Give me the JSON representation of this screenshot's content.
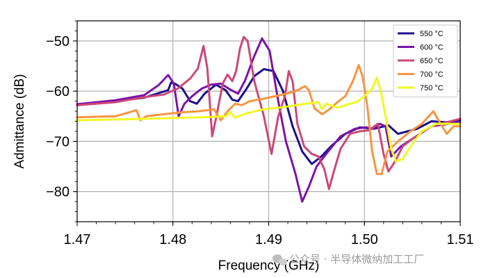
{
  "chart_data": {
    "type": "line",
    "title": "",
    "xlabel": "Frequency (GHz)",
    "ylabel": "Admittance (dB)",
    "xlim": [
      1.47,
      1.51
    ],
    "ylim": [
      -86,
      -46
    ],
    "x_ticks": [
      1.47,
      1.48,
      1.49,
      1.5,
      1.51
    ],
    "x_tick_labels": [
      "1.47",
      "1.48",
      "1.49",
      "1.50",
      "1.51"
    ],
    "y_ticks": [
      -80,
      -70,
      -60,
      -50
    ],
    "y_tick_labels": [
      "−80",
      "−70",
      "−60",
      "−50"
    ],
    "grid": true,
    "legend_position": "top-right",
    "series": [
      {
        "name": "550 °C",
        "color": "#1a0e8c",
        "points": [
          [
            1.47,
            -62.8
          ],
          [
            1.474,
            -62.0
          ],
          [
            1.477,
            -61.3
          ],
          [
            1.4795,
            -59.8
          ],
          [
            1.4798,
            -58.3
          ],
          [
            1.4802,
            -58.5
          ],
          [
            1.481,
            -59.5
          ],
          [
            1.4818,
            -62.0
          ],
          [
            1.4825,
            -62.5
          ],
          [
            1.4833,
            -60.5
          ],
          [
            1.4845,
            -58.7
          ],
          [
            1.4855,
            -59.8
          ],
          [
            1.4862,
            -61.7
          ],
          [
            1.4868,
            -62.0
          ],
          [
            1.4877,
            -59.5
          ],
          [
            1.4885,
            -57.0
          ],
          [
            1.4895,
            -55.6
          ],
          [
            1.4905,
            -56.0
          ],
          [
            1.4915,
            -60.0
          ],
          [
            1.4925,
            -67.0
          ],
          [
            1.4935,
            -72.0
          ],
          [
            1.4945,
            -74.5
          ],
          [
            1.4955,
            -73.0
          ],
          [
            1.4965,
            -71.0
          ],
          [
            1.498,
            -68.5
          ],
          [
            1.4995,
            -67.2
          ],
          [
            1.501,
            -67.5
          ],
          [
            1.5025,
            -66.8
          ],
          [
            1.5035,
            -68.5
          ],
          [
            1.5045,
            -68.0
          ],
          [
            1.5055,
            -67.5
          ],
          [
            1.507,
            -66.0
          ],
          [
            1.5085,
            -66.2
          ],
          [
            1.51,
            -65.8
          ]
        ]
      },
      {
        "name": "600 °C",
        "color": "#7a13a8",
        "points": [
          [
            1.47,
            -62.6
          ],
          [
            1.474,
            -61.8
          ],
          [
            1.477,
            -60.8
          ],
          [
            1.4785,
            -58.8
          ],
          [
            1.4795,
            -56.8
          ],
          [
            1.4801,
            -58.5
          ],
          [
            1.4806,
            -65.0
          ],
          [
            1.4812,
            -62.5
          ],
          [
            1.482,
            -61.0
          ],
          [
            1.483,
            -59.5
          ],
          [
            1.484,
            -58.7
          ],
          [
            1.485,
            -58.5
          ],
          [
            1.486,
            -59.7
          ],
          [
            1.4868,
            -60.5
          ],
          [
            1.4875,
            -58.0
          ],
          [
            1.4885,
            -53.0
          ],
          [
            1.4893,
            -49.5
          ],
          [
            1.4901,
            -52.0
          ],
          [
            1.491,
            -62.0
          ],
          [
            1.4918,
            -70.0
          ],
          [
            1.4928,
            -76.5
          ],
          [
            1.4935,
            -82.0
          ],
          [
            1.4942,
            -79.0
          ],
          [
            1.495,
            -75.0
          ],
          [
            1.496,
            -72.5
          ],
          [
            1.4975,
            -69.0
          ],
          [
            1.499,
            -67.5
          ],
          [
            1.5002,
            -67.2
          ],
          [
            1.501,
            -67.5
          ],
          [
            1.5016,
            -66.5
          ],
          [
            1.5022,
            -67.0
          ],
          [
            1.5028,
            -73.0
          ],
          [
            1.5038,
            -71.0
          ],
          [
            1.505,
            -69.5
          ],
          [
            1.507,
            -67.0
          ],
          [
            1.51,
            -66.2
          ]
        ]
      },
      {
        "name": "650 °C",
        "color": "#cc4778",
        "points": [
          [
            1.47,
            -62.8
          ],
          [
            1.474,
            -62.2
          ],
          [
            1.477,
            -61.2
          ],
          [
            1.479,
            -60.7
          ],
          [
            1.4805,
            -59.5
          ],
          [
            1.4818,
            -57.5
          ],
          [
            1.4826,
            -55.5
          ],
          [
            1.4832,
            -51.0
          ],
          [
            1.4836,
            -55.5
          ],
          [
            1.4841,
            -69.0
          ],
          [
            1.4846,
            -64.5
          ],
          [
            1.4852,
            -58.5
          ],
          [
            1.4857,
            -56.7
          ],
          [
            1.4862,
            -58.0
          ],
          [
            1.4866,
            -56.0
          ],
          [
            1.487,
            -51.5
          ],
          [
            1.4874,
            -49.2
          ],
          [
            1.4878,
            -50.0
          ],
          [
            1.4885,
            -58.0
          ],
          [
            1.4895,
            -65.0
          ],
          [
            1.4903,
            -72.5
          ],
          [
            1.491,
            -65.0
          ],
          [
            1.4917,
            -61.0
          ],
          [
            1.4921,
            -56.0
          ],
          [
            1.4925,
            -58.0
          ],
          [
            1.493,
            -66.5
          ],
          [
            1.4937,
            -71.0
          ],
          [
            1.4945,
            -72.5
          ],
          [
            1.4952,
            -73.0
          ],
          [
            1.4958,
            -75.5
          ],
          [
            1.4963,
            -79.5
          ],
          [
            1.4968,
            -76.0
          ],
          [
            1.4975,
            -71.5
          ],
          [
            1.4985,
            -68.5
          ],
          [
            1.4995,
            -68.0
          ],
          [
            1.5005,
            -67.8
          ],
          [
            1.5014,
            -66.5
          ],
          [
            1.502,
            -72.5
          ],
          [
            1.5025,
            -76.0
          ],
          [
            1.5032,
            -74.0
          ],
          [
            1.504,
            -71.0
          ],
          [
            1.505,
            -69.5
          ],
          [
            1.507,
            -67.0
          ],
          [
            1.51,
            -65.5
          ]
        ]
      },
      {
        "name": "700 °C",
        "color": "#f89441",
        "points": [
          [
            1.47,
            -65.2
          ],
          [
            1.474,
            -65.0
          ],
          [
            1.4762,
            -63.8
          ],
          [
            1.4766,
            -65.8
          ],
          [
            1.4772,
            -65.0
          ],
          [
            1.479,
            -64.6
          ],
          [
            1.481,
            -64.2
          ],
          [
            1.4828,
            -64.0
          ],
          [
            1.4843,
            -63.6
          ],
          [
            1.485,
            -65.8
          ],
          [
            1.4857,
            -64.0
          ],
          [
            1.4865,
            -62.5
          ],
          [
            1.4872,
            -62.8
          ],
          [
            1.488,
            -62.0
          ],
          [
            1.4895,
            -61.5
          ],
          [
            1.4912,
            -60.8
          ],
          [
            1.4928,
            -60.0
          ],
          [
            1.4938,
            -59.0
          ],
          [
            1.4942,
            -59.8
          ],
          [
            1.4948,
            -63.5
          ],
          [
            1.4956,
            -64.6
          ],
          [
            1.4962,
            -63.8
          ],
          [
            1.4973,
            -62.0
          ],
          [
            1.498,
            -61.0
          ],
          [
            1.4988,
            -58.0
          ],
          [
            1.4994,
            -54.8
          ],
          [
            1.4998,
            -57.0
          ],
          [
            1.5003,
            -63.0
          ],
          [
            1.5008,
            -72.0
          ],
          [
            1.5013,
            -76.5
          ],
          [
            1.5018,
            -76.5
          ],
          [
            1.5024,
            -72.0
          ],
          [
            1.5035,
            -70.0
          ],
          [
            1.5048,
            -68.0
          ],
          [
            1.506,
            -66.5
          ],
          [
            1.5072,
            -64.0
          ],
          [
            1.5078,
            -66.0
          ],
          [
            1.5086,
            -68.5
          ],
          [
            1.5093,
            -67.0
          ],
          [
            1.51,
            -67.0
          ]
        ]
      },
      {
        "name": "750 °C",
        "color": "#f0f921",
        "points": [
          [
            1.47,
            -65.8
          ],
          [
            1.475,
            -65.6
          ],
          [
            1.479,
            -65.4
          ],
          [
            1.483,
            -65.2
          ],
          [
            1.4855,
            -65.0
          ],
          [
            1.486,
            -64.2
          ],
          [
            1.4865,
            -65.3
          ],
          [
            1.4875,
            -64.5
          ],
          [
            1.4895,
            -63.6
          ],
          [
            1.4915,
            -63.2
          ],
          [
            1.4935,
            -62.6
          ],
          [
            1.4952,
            -62.2
          ],
          [
            1.4956,
            -63.6
          ],
          [
            1.496,
            -62.5
          ],
          [
            1.4972,
            -63.3
          ],
          [
            1.4983,
            -62.6
          ],
          [
            1.4992,
            -62.2
          ],
          [
            1.5,
            -61.0
          ],
          [
            1.5008,
            -59.5
          ],
          [
            1.5013,
            -57.3
          ],
          [
            1.5017,
            -60.0
          ],
          [
            1.5022,
            -65.0
          ],
          [
            1.5028,
            -71.5
          ],
          [
            1.5033,
            -74.0
          ],
          [
            1.504,
            -73.5
          ],
          [
            1.505,
            -70.5
          ],
          [
            1.506,
            -68.0
          ],
          [
            1.5075,
            -66.5
          ],
          [
            1.509,
            -66.5
          ],
          [
            1.51,
            -66.5
          ]
        ]
      }
    ]
  },
  "watermark": {
    "text": "公众号 · 半导体微纳加工工厂",
    "icon": "wechat-icon"
  }
}
